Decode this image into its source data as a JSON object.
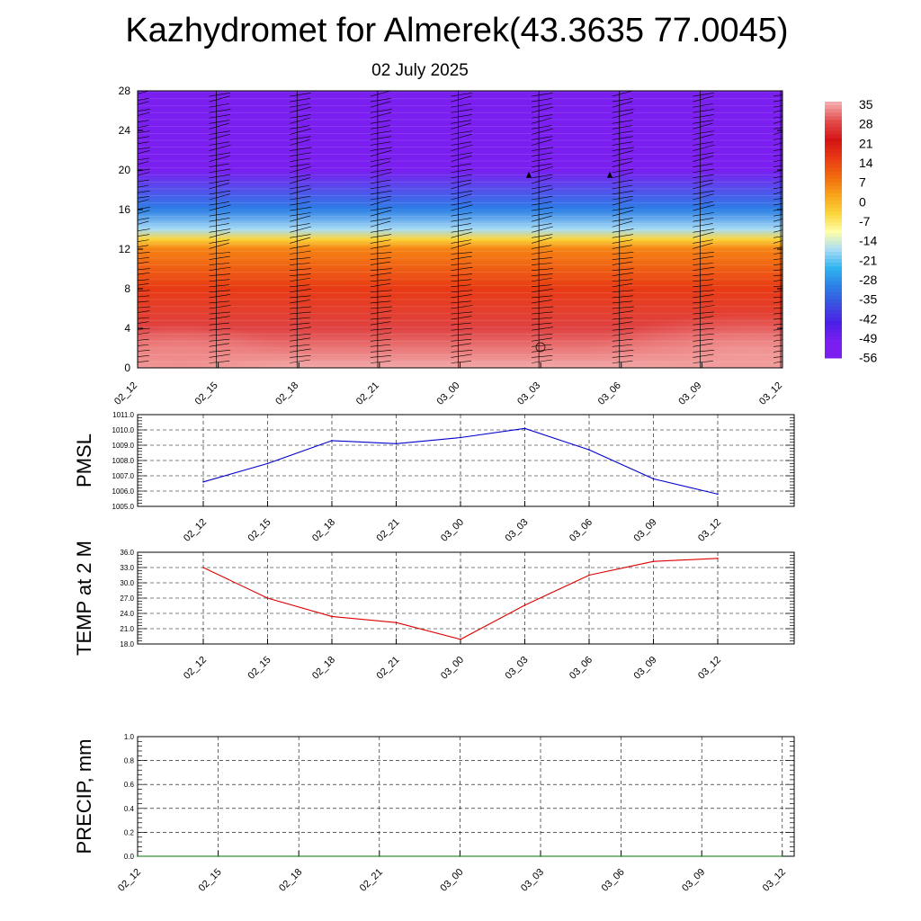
{
  "title": "Kazhydromet for Almerek(43.3635 77.0045)",
  "subtitle": "02 July 2025",
  "chart_data": [
    {
      "type": "heatmap",
      "x_ticks": [
        "02_12",
        "02_15",
        "02_18",
        "02_21",
        "03_00",
        "03_03",
        "03_06",
        "03_09",
        "03_12"
      ],
      "y_ticks": [
        "0",
        "4",
        "8",
        "12",
        "16",
        "20",
        "24",
        "28"
      ],
      "ylim": [
        0,
        28
      ],
      "colorbar_labels": [
        "35",
        "28",
        "21",
        "14",
        "7",
        "0",
        "-7",
        "-14",
        "-21",
        "-28",
        "-35",
        "-42",
        "-49",
        "-56"
      ],
      "colorbar_colors": [
        "#f3a9a9",
        "#e24a4a",
        "#d41414",
        "#e83a14",
        "#f26a0e",
        "#f8a31a",
        "#fbd43a",
        "#ffffa8",
        "#a8dcf5",
        "#2fb4ef",
        "#2c7fe6",
        "#3a4fe0",
        "#4c1fe6",
        "#7a1ff0"
      ],
      "temperature_profile": [
        {
          "height": 0,
          "temp": 35
        },
        {
          "height": 4,
          "temp": 27
        },
        {
          "height": 8,
          "temp": 14
        },
        {
          "height": 12,
          "temp": 4
        },
        {
          "height": 13,
          "temp": -7
        },
        {
          "height": 14,
          "temp": -21
        },
        {
          "height": 16,
          "temp": -35
        },
        {
          "height": 20,
          "temp": -56
        },
        {
          "height": 24,
          "temp": -60
        },
        {
          "height": 28,
          "temp": -60
        }
      ],
      "grid": false
    },
    {
      "type": "line",
      "ylabel": "PMSL",
      "x_ticks": [
        "02_12",
        "02_15",
        "02_18",
        "02_21",
        "03_00",
        "03_03",
        "03_06",
        "03_09",
        "03_12"
      ],
      "y_ticks": [
        "1005.0",
        "1006.0",
        "1007.0",
        "1008.0",
        "1009.0",
        "1010.0",
        "1011.0"
      ],
      "ylim": [
        1005,
        1011
      ],
      "series": [
        {
          "values": [
            1006.6,
            1007.8,
            1009.3,
            1009.1,
            1009.5,
            1010.1,
            1008.7,
            1006.8,
            1005.8
          ],
          "color": "#0000cc"
        }
      ],
      "grid": true
    },
    {
      "type": "line",
      "ylabel": "TEMP at 2 M",
      "x_ticks": [
        "02_12",
        "02_15",
        "02_18",
        "02_21",
        "03_00",
        "03_03",
        "03_06",
        "03_09",
        "03_12"
      ],
      "y_ticks": [
        "18.0",
        "21.0",
        "24.0",
        "27.0",
        "30.0",
        "33.0",
        "36.0"
      ],
      "ylim": [
        18,
        36
      ],
      "series": [
        {
          "values": [
            33.0,
            27.0,
            23.4,
            22.2,
            18.9,
            25.6,
            31.5,
            34.2,
            34.8
          ],
          "color": "#dd0000"
        }
      ],
      "grid": true
    },
    {
      "type": "line",
      "ylabel": "PRECIP, mm",
      "x_ticks": [
        "02_12",
        "02_15",
        "02_18",
        "02_21",
        "03_00",
        "03_03",
        "03_06",
        "03_09",
        "03_12"
      ],
      "y_ticks": [
        "0.0",
        "0.2",
        "0.4",
        "0.6",
        "0.8",
        "1.0"
      ],
      "ylim": [
        0,
        1
      ],
      "series": [
        {
          "values": [
            0,
            0,
            0,
            0,
            0,
            0,
            0,
            0,
            0
          ],
          "color": "#007700"
        }
      ],
      "grid": true
    }
  ]
}
